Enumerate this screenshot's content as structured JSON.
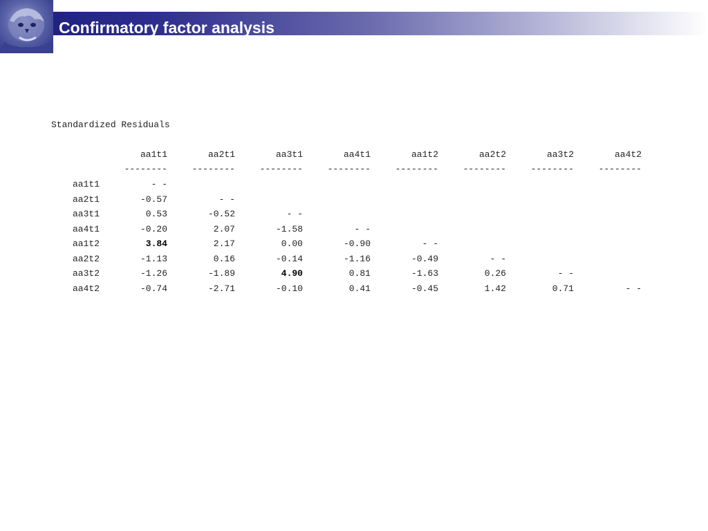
{
  "slide": {
    "title": "Confirmatory factor analysis"
  },
  "output": {
    "heading": "Standardized Residuals",
    "columns": [
      "aa1t1",
      "aa2t1",
      "aa3t1",
      "aa4t1",
      "aa1t2",
      "aa2t2",
      "aa3t2",
      "aa4t2"
    ],
    "separator": "--------",
    "rows": [
      {
        "label": "aa1t1",
        "cells": [
          {
            "v": "- -"
          }
        ]
      },
      {
        "label": "aa2t1",
        "cells": [
          {
            "v": "-0.57"
          },
          {
            "v": "- -"
          }
        ]
      },
      {
        "label": "aa3t1",
        "cells": [
          {
            "v": "0.53"
          },
          {
            "v": "-0.52"
          },
          {
            "v": "- -"
          }
        ]
      },
      {
        "label": "aa4t1",
        "cells": [
          {
            "v": "-0.20"
          },
          {
            "v": "2.07"
          },
          {
            "v": "-1.58"
          },
          {
            "v": "- -"
          }
        ]
      },
      {
        "label": "aa1t2",
        "cells": [
          {
            "v": "3.84",
            "bold": true
          },
          {
            "v": "2.17"
          },
          {
            "v": "0.00"
          },
          {
            "v": "-0.90"
          },
          {
            "v": "- -"
          }
        ]
      },
      {
        "label": "aa2t2",
        "cells": [
          {
            "v": "-1.13"
          },
          {
            "v": "0.16"
          },
          {
            "v": "-0.14"
          },
          {
            "v": "-1.16"
          },
          {
            "v": "-0.49"
          },
          {
            "v": "- -"
          }
        ]
      },
      {
        "label": "aa3t2",
        "cells": [
          {
            "v": "-1.26"
          },
          {
            "v": "-1.89"
          },
          {
            "v": "4.90",
            "bold": true
          },
          {
            "v": "0.81"
          },
          {
            "v": "-1.63"
          },
          {
            "v": "0.26"
          },
          {
            "v": "- -"
          }
        ]
      },
      {
        "label": "aa4t2",
        "cells": [
          {
            "v": "-0.74"
          },
          {
            "v": "-2.71"
          },
          {
            "v": "-0.10"
          },
          {
            "v": "0.41"
          },
          {
            "v": "-0.45"
          },
          {
            "v": "1.42"
          },
          {
            "v": "0.71"
          },
          {
            "v": "- -"
          }
        ]
      }
    ]
  }
}
